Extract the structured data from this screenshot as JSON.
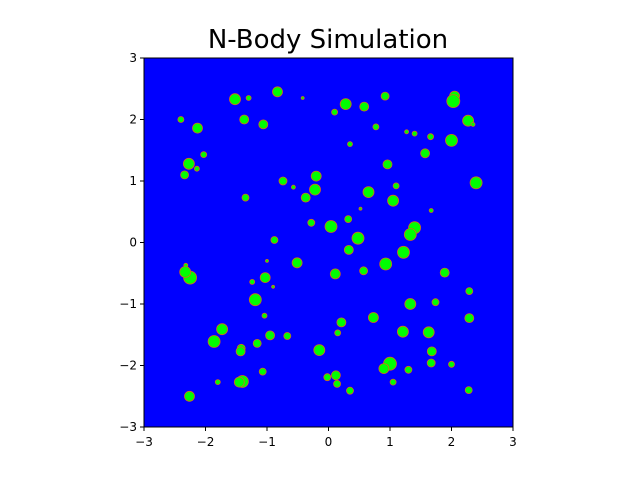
{
  "chart_data": {
    "type": "scatter",
    "title": "N-Body Simulation",
    "xlabel": "",
    "ylabel": "",
    "xlim": [
      -3,
      3
    ],
    "ylim": [
      -3,
      3
    ],
    "xticks": [
      -3,
      -2,
      -1,
      0,
      1,
      2,
      3
    ],
    "yticks": [
      -3,
      -2,
      -1,
      0,
      1,
      2,
      3
    ],
    "grid": false,
    "legend": false,
    "colors": {
      "background": "#0000ff",
      "marker_fill": "#00ff00",
      "marker_edge": "#d2691e"
    },
    "series": [
      {
        "points": [
          {
            "x": -1.52,
            "y": 2.33,
            "s": 5.5
          },
          {
            "x": -1.3,
            "y": 2.35,
            "s": 2.5
          },
          {
            "x": -0.83,
            "y": 2.45,
            "s": 5.0
          },
          {
            "x": -0.42,
            "y": 2.35,
            "s": 1.5
          },
          {
            "x": 0.1,
            "y": 2.12,
            "s": 3.0
          },
          {
            "x": 0.28,
            "y": 2.25,
            "s": 5.5
          },
          {
            "x": 0.58,
            "y": 2.21,
            "s": 4.5
          },
          {
            "x": 0.92,
            "y": 2.38,
            "s": 4.0
          },
          {
            "x": 2.05,
            "y": 2.38,
            "s": 5.0
          },
          {
            "x": 2.03,
            "y": 2.3,
            "s": 6.5
          },
          {
            "x": -2.4,
            "y": 2.0,
            "s": 3.0
          },
          {
            "x": -1.37,
            "y": 2.0,
            "s": 4.5
          },
          {
            "x": -1.06,
            "y": 1.92,
            "s": 4.5
          },
          {
            "x": -2.13,
            "y": 1.86,
            "s": 5.0
          },
          {
            "x": 0.77,
            "y": 1.88,
            "s": 3.0
          },
          {
            "x": 1.27,
            "y": 1.8,
            "s": 2.0
          },
          {
            "x": 1.4,
            "y": 1.77,
            "s": 2.5
          },
          {
            "x": 1.66,
            "y": 1.72,
            "s": 3.0
          },
          {
            "x": 2.27,
            "y": 1.98,
            "s": 5.5
          },
          {
            "x": 2.35,
            "y": 1.92,
            "s": 2.0
          },
          {
            "x": 2.0,
            "y": 1.66,
            "s": 6.0
          },
          {
            "x": 0.35,
            "y": 1.6,
            "s": 2.5
          },
          {
            "x": 1.57,
            "y": 1.45,
            "s": 4.5
          },
          {
            "x": -2.03,
            "y": 1.43,
            "s": 3.0
          },
          {
            "x": -2.27,
            "y": 1.28,
            "s": 5.5
          },
          {
            "x": -2.14,
            "y": 1.2,
            "s": 2.5
          },
          {
            "x": -2.34,
            "y": 1.1,
            "s": 4.0
          },
          {
            "x": 0.96,
            "y": 1.27,
            "s": 4.5
          },
          {
            "x": -0.2,
            "y": 1.08,
            "s": 5.0
          },
          {
            "x": -0.74,
            "y": 1.0,
            "s": 4.0
          },
          {
            "x": -0.57,
            "y": 0.9,
            "s": 2.0
          },
          {
            "x": -0.22,
            "y": 0.86,
            "s": 5.5
          },
          {
            "x": 1.1,
            "y": 0.92,
            "s": 3.0
          },
          {
            "x": 2.4,
            "y": 0.97,
            "s": 6.0
          },
          {
            "x": 0.65,
            "y": 0.82,
            "s": 5.5
          },
          {
            "x": -1.35,
            "y": 0.73,
            "s": 3.5
          },
          {
            "x": -0.37,
            "y": 0.73,
            "s": 4.5
          },
          {
            "x": 1.05,
            "y": 0.68,
            "s": 5.5
          },
          {
            "x": 0.52,
            "y": 0.55,
            "s": 1.5
          },
          {
            "x": 1.67,
            "y": 0.52,
            "s": 2.0
          },
          {
            "x": -0.28,
            "y": 0.32,
            "s": 3.5
          },
          {
            "x": 0.32,
            "y": 0.38,
            "s": 3.5
          },
          {
            "x": 0.04,
            "y": 0.26,
            "s": 6.0
          },
          {
            "x": 1.4,
            "y": 0.24,
            "s": 6.0
          },
          {
            "x": 1.33,
            "y": 0.13,
            "s": 6.0
          },
          {
            "x": 0.48,
            "y": 0.07,
            "s": 6.0
          },
          {
            "x": -0.88,
            "y": 0.04,
            "s": 3.5
          },
          {
            "x": 0.33,
            "y": -0.12,
            "s": 4.5
          },
          {
            "x": 1.22,
            "y": -0.16,
            "s": 6.0
          },
          {
            "x": 0.93,
            "y": -0.35,
            "s": 6.0
          },
          {
            "x": -0.51,
            "y": -0.33,
            "s": 5.0
          },
          {
            "x": -1.0,
            "y": -0.3,
            "s": 1.5
          },
          {
            "x": -2.32,
            "y": -0.37,
            "s": 2.0
          },
          {
            "x": -2.25,
            "y": -0.57,
            "s": 6.5
          },
          {
            "x": -2.33,
            "y": -0.48,
            "s": 5.5
          },
          {
            "x": 0.11,
            "y": -0.51,
            "s": 5.0
          },
          {
            "x": 0.57,
            "y": -0.46,
            "s": 4.0
          },
          {
            "x": 1.89,
            "y": -0.49,
            "s": 4.5
          },
          {
            "x": -1.03,
            "y": -0.57,
            "s": 5.0
          },
          {
            "x": -1.24,
            "y": -0.64,
            "s": 2.5
          },
          {
            "x": -0.9,
            "y": -0.72,
            "s": 1.5
          },
          {
            "x": 2.29,
            "y": -0.79,
            "s": 3.5
          },
          {
            "x": -1.19,
            "y": -0.93,
            "s": 6.0
          },
          {
            "x": 1.33,
            "y": -1.0,
            "s": 5.5
          },
          {
            "x": 1.74,
            "y": -0.97,
            "s": 3.5
          },
          {
            "x": -1.04,
            "y": -1.19,
            "s": 2.5
          },
          {
            "x": 0.73,
            "y": -1.22,
            "s": 5.0
          },
          {
            "x": 2.29,
            "y": -1.23,
            "s": 4.5
          },
          {
            "x": 0.21,
            "y": -1.3,
            "s": 4.5
          },
          {
            "x": -1.73,
            "y": -1.41,
            "s": 5.5
          },
          {
            "x": 1.21,
            "y": -1.45,
            "s": 5.5
          },
          {
            "x": 1.63,
            "y": -1.46,
            "s": 5.5
          },
          {
            "x": 0.15,
            "y": -1.47,
            "s": 3.0
          },
          {
            "x": -0.95,
            "y": -1.51,
            "s": 4.5
          },
          {
            "x": -0.67,
            "y": -1.52,
            "s": 3.5
          },
          {
            "x": -1.86,
            "y": -1.61,
            "s": 6.0
          },
          {
            "x": -1.16,
            "y": -1.64,
            "s": 4.0
          },
          {
            "x": -1.42,
            "y": -1.72,
            "s": 4.0
          },
          {
            "x": -1.43,
            "y": -1.77,
            "s": 4.5
          },
          {
            "x": -0.15,
            "y": -1.75,
            "s": 5.5
          },
          {
            "x": 1.68,
            "y": -1.77,
            "s": 4.5
          },
          {
            "x": 1.0,
            "y": -1.97,
            "s": 6.5
          },
          {
            "x": 1.67,
            "y": -1.96,
            "s": 4.0
          },
          {
            "x": 2.0,
            "y": -1.98,
            "s": 3.0
          },
          {
            "x": 0.9,
            "y": -2.05,
            "s": 5.0
          },
          {
            "x": 1.3,
            "y": -2.07,
            "s": 3.5
          },
          {
            "x": -1.07,
            "y": -2.1,
            "s": 3.5
          },
          {
            "x": -0.02,
            "y": -2.19,
            "s": 3.5
          },
          {
            "x": 0.12,
            "y": -2.16,
            "s": 4.5
          },
          {
            "x": -1.8,
            "y": -2.27,
            "s": 2.5
          },
          {
            "x": -1.4,
            "y": -2.26,
            "s": 6.0
          },
          {
            "x": -1.45,
            "y": -2.27,
            "s": 5.0
          },
          {
            "x": 0.14,
            "y": -2.3,
            "s": 3.5
          },
          {
            "x": 1.05,
            "y": -2.27,
            "s": 3.0
          },
          {
            "x": 0.35,
            "y": -2.41,
            "s": 3.5
          },
          {
            "x": 2.28,
            "y": -2.4,
            "s": 3.5
          },
          {
            "x": -2.26,
            "y": -2.5,
            "s": 5.0
          }
        ]
      }
    ]
  }
}
